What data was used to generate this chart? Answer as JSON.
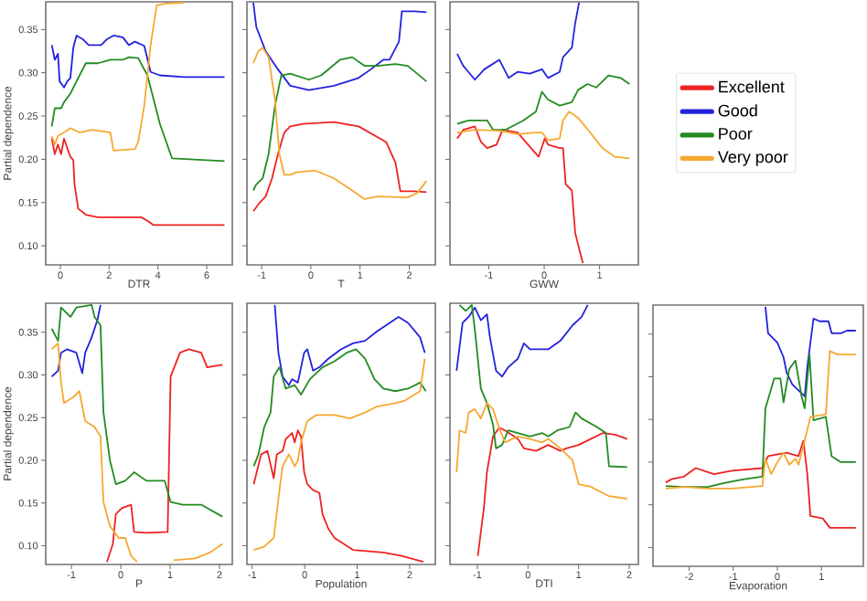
{
  "chart_data": [
    {
      "type": "line",
      "xlabel": "DTR",
      "ylabel": "Partial dependence",
      "xlim": [
        -0.6,
        7.05
      ],
      "xticks": [
        0,
        2,
        4,
        6
      ],
      "ylim": [
        0.078,
        0.382
      ],
      "yticks": [
        {
          "value": 0.1,
          "label": "0.10"
        },
        {
          "value": 0.15,
          "label": "0.15"
        },
        {
          "value": 0.2,
          "label": "0.20"
        },
        {
          "value": 0.25,
          "label": "0.25"
        },
        {
          "value": 0.3,
          "label": "0.30"
        },
        {
          "value": 0.35,
          "label": "0.35"
        }
      ],
      "series": [
        {
          "color": "#ee2222",
          "x": [
            -0.35,
            -0.23,
            -0.1,
            0.03,
            0.15,
            0.28,
            0.41,
            0.53,
            0.58,
            0.73,
            1.04,
            1.54,
            3.32,
            3.57,
            3.82,
            6.73
          ],
          "values": [
            0.224,
            0.206,
            0.217,
            0.206,
            0.224,
            0.213,
            0.203,
            0.199,
            0.171,
            0.143,
            0.136,
            0.133,
            0.133,
            0.129,
            0.124,
            0.124
          ]
        },
        {
          "color": "#2222dd",
          "x": [
            -0.35,
            -0.23,
            -0.1,
            -0.03,
            0.15,
            0.28,
            0.41,
            0.53,
            0.66,
            0.91,
            1.16,
            1.67,
            1.92,
            2.18,
            2.56,
            2.81,
            3.06,
            3.44,
            3.7,
            4.08,
            5.09,
            6.73
          ],
          "values": [
            0.332,
            0.315,
            0.322,
            0.29,
            0.283,
            0.29,
            0.294,
            0.329,
            0.343,
            0.339,
            0.332,
            0.332,
            0.339,
            0.343,
            0.341,
            0.332,
            0.336,
            0.331,
            0.301,
            0.297,
            0.295,
            0.295
          ]
        },
        {
          "color": "#228b22",
          "x": [
            -0.35,
            -0.23,
            0.03,
            0.15,
            0.41,
            0.66,
            1.04,
            1.54,
            2.05,
            2.56,
            2.81,
            3.19,
            3.57,
            4.08,
            4.58,
            6.73
          ],
          "values": [
            0.238,
            0.259,
            0.259,
            0.266,
            0.276,
            0.29,
            0.311,
            0.311,
            0.315,
            0.315,
            0.318,
            0.317,
            0.297,
            0.241,
            0.201,
            0.198
          ]
        },
        {
          "color": "#f5a830",
          "x": [
            -0.35,
            -0.23,
            -0.1,
            0.15,
            0.41,
            0.79,
            1.29,
            2.05,
            2.18,
            3.06,
            3.19,
            3.44,
            3.7,
            3.95,
            4.33,
            5.09
          ],
          "values": [
            0.227,
            0.217,
            0.227,
            0.231,
            0.236,
            0.231,
            0.234,
            0.231,
            0.21,
            0.212,
            0.22,
            0.262,
            0.332,
            0.378,
            0.38,
            0.381
          ]
        }
      ]
    },
    {
      "type": "line",
      "xlabel": "T",
      "xlim": [
        -1.3,
        2.53
      ],
      "xticks": [
        -1,
        0,
        1,
        2
      ],
      "ylim": [
        0.078,
        0.382
      ],
      "yticks": [
        0.1,
        0.15,
        0.2,
        0.25,
        0.3,
        0.35
      ],
      "tick_labels": "x",
      "series": [
        {
          "color": "#ee2222",
          "x": [
            -1.17,
            -1.04,
            -0.92,
            -0.79,
            -0.67,
            -0.54,
            -0.42,
            -0.16,
            0.47,
            0.97,
            1.53,
            1.72,
            1.82,
            2.1,
            2.35
          ],
          "values": [
            0.14,
            0.15,
            0.157,
            0.178,
            0.206,
            0.231,
            0.238,
            0.241,
            0.243,
            0.238,
            0.22,
            0.196,
            0.163,
            0.163,
            0.162
          ]
        },
        {
          "color": "#2222dd",
          "x": [
            -1.17,
            -1.11,
            -0.92,
            -0.67,
            -0.42,
            -0.04,
            0.47,
            0.97,
            1.22,
            1.47,
            1.6,
            1.79,
            1.85,
            2.1,
            2.35
          ],
          "values": [
            0.381,
            0.353,
            0.325,
            0.304,
            0.285,
            0.28,
            0.285,
            0.294,
            0.304,
            0.315,
            0.315,
            0.336,
            0.371,
            0.371,
            0.37
          ]
        },
        {
          "color": "#228b22",
          "x": [
            -1.17,
            -1.11,
            -0.98,
            -0.86,
            -0.73,
            -0.6,
            -0.42,
            -0.04,
            0.21,
            0.59,
            0.84,
            1.09,
            1.35,
            1.72,
            1.97,
            2.35
          ],
          "values": [
            0.164,
            0.171,
            0.178,
            0.206,
            0.262,
            0.297,
            0.299,
            0.292,
            0.297,
            0.315,
            0.318,
            0.308,
            0.308,
            0.31,
            0.308,
            0.29
          ]
        },
        {
          "color": "#f5a830",
          "x": [
            -1.17,
            -1.07,
            -0.98,
            -0.86,
            -0.73,
            -0.64,
            -0.54,
            -0.42,
            -0.29,
            0.09,
            0.47,
            0.84,
            1.09,
            1.35,
            1.97,
            2.16,
            2.35
          ],
          "values": [
            0.311,
            0.325,
            0.329,
            0.318,
            0.269,
            0.206,
            0.182,
            0.182,
            0.185,
            0.187,
            0.178,
            0.164,
            0.154,
            0.157,
            0.156,
            0.161,
            0.175
          ]
        }
      ]
    },
    {
      "type": "line",
      "xlabel": "GWW",
      "xlim": [
        -1.7,
        1.7
      ],
      "xticks": [
        -1,
        0,
        1
      ],
      "ylim": [
        0.078,
        0.382
      ],
      "yticks": [
        0.1,
        0.15,
        0.2,
        0.25,
        0.3,
        0.35
      ],
      "tick_labels": "x",
      "legend": "right",
      "series": [
        {
          "name": "Excellent",
          "color": "#ee2222",
          "x": [
            -1.57,
            -1.46,
            -1.25,
            -1.14,
            -1.03,
            -0.86,
            -0.75,
            -0.48,
            -0.1,
            0.01,
            0.07,
            0.28,
            0.34,
            0.39,
            0.5,
            0.56,
            0.67,
            0.7
          ],
          "values": [
            0.224,
            0.234,
            0.238,
            0.22,
            0.213,
            0.217,
            0.234,
            0.231,
            0.203,
            0.224,
            0.217,
            0.213,
            0.213,
            0.171,
            0.164,
            0.115,
            0.087,
            0.08
          ]
        },
        {
          "name": "Good",
          "color": "#2222dd",
          "x": [
            -1.57,
            -1.46,
            -1.25,
            -1.08,
            -0.81,
            -0.64,
            -0.48,
            -0.26,
            -0.04,
            0.07,
            0.28,
            0.34,
            0.5,
            0.56,
            0.63
          ],
          "values": [
            0.322,
            0.308,
            0.292,
            0.304,
            0.315,
            0.294,
            0.301,
            0.299,
            0.304,
            0.294,
            0.301,
            0.318,
            0.329,
            0.357,
            0.381
          ]
        },
        {
          "name": "Poor",
          "color": "#228b22",
          "x": [
            -1.57,
            -1.36,
            -1.03,
            -0.92,
            -0.7,
            -0.37,
            -0.15,
            -0.04,
            0.07,
            0.28,
            0.5,
            0.61,
            0.78,
            0.94,
            1.16,
            1.38,
            1.54
          ],
          "values": [
            0.241,
            0.245,
            0.245,
            0.234,
            0.234,
            0.245,
            0.255,
            0.278,
            0.269,
            0.262,
            0.266,
            0.28,
            0.287,
            0.283,
            0.297,
            0.294,
            0.287
          ]
        },
        {
          "name": "Very poor",
          "color": "#f5a830",
          "x": [
            -1.57,
            -1.25,
            -0.81,
            -0.48,
            -0.15,
            -0.04,
            0.07,
            0.28,
            0.34,
            0.45,
            0.61,
            0.83,
            1.05,
            1.27,
            1.54
          ],
          "values": [
            0.231,
            0.234,
            0.233,
            0.229,
            0.231,
            0.231,
            0.222,
            0.224,
            0.245,
            0.255,
            0.248,
            0.231,
            0.213,
            0.203,
            0.201
          ]
        }
      ]
    },
    {
      "type": "line",
      "xlabel": "P",
      "ylabel": "Partial dependence",
      "xlim": [
        -1.52,
        2.26
      ],
      "xticks": [
        -1,
        0,
        1,
        2
      ],
      "ylim": [
        0.078,
        0.384
      ],
      "yticks": [
        {
          "value": 0.1,
          "label": "0.10"
        },
        {
          "value": 0.15,
          "label": "0.15"
        },
        {
          "value": 0.2,
          "label": "0.20"
        },
        {
          "value": 0.25,
          "label": "0.25"
        },
        {
          "value": 0.3,
          "label": "0.30"
        },
        {
          "value": 0.35,
          "label": "0.35"
        }
      ],
      "series": [
        {
          "color": "#ee2222",
          "x": [
            -0.28,
            -0.16,
            -0.1,
            0.02,
            0.21,
            0.27,
            0.52,
            0.95,
            1.01,
            1.2,
            1.38,
            1.63,
            1.75,
            2.06
          ],
          "values": [
            0.081,
            0.102,
            0.137,
            0.144,
            0.148,
            0.116,
            0.115,
            0.116,
            0.298,
            0.326,
            0.33,
            0.326,
            0.309,
            0.312
          ]
        },
        {
          "color": "#2222dd",
          "x": [
            -1.4,
            -1.27,
            -1.21,
            -1.09,
            -0.9,
            -0.78,
            -0.72,
            -0.59,
            -0.47,
            -0.41
          ],
          "values": [
            0.298,
            0.305,
            0.326,
            0.33,
            0.326,
            0.302,
            0.326,
            0.344,
            0.365,
            0.382
          ]
        },
        {
          "color": "#228b22",
          "x": [
            -1.4,
            -1.27,
            -1.21,
            -1.02,
            -0.9,
            -0.59,
            -0.53,
            -0.41,
            -0.35,
            -0.22,
            -0.1,
            0.09,
            0.27,
            0.52,
            0.89,
            1.01,
            1.26,
            1.63,
            2.06
          ],
          "values": [
            0.354,
            0.34,
            0.379,
            0.368,
            0.379,
            0.382,
            0.368,
            0.358,
            0.256,
            0.2,
            0.172,
            0.176,
            0.186,
            0.176,
            0.176,
            0.151,
            0.148,
            0.148,
            0.134
          ]
        },
        {
          "color": "#f5a830",
          "x": [
            -1.4,
            -1.27,
            -1.21,
            -1.15,
            -0.96,
            -0.84,
            -0.72,
            -0.53,
            -0.41,
            -0.35,
            -0.22,
            -0.04,
            0.09,
            0.21,
            0.33,
            0.7,
            1.07,
            1.51,
            1.81,
            2.06
          ],
          "values": [
            0.33,
            0.337,
            0.291,
            0.267,
            0.274,
            0.281,
            0.246,
            0.239,
            0.228,
            0.151,
            0.123,
            0.109,
            0.109,
            0.088,
            0.081,
            null,
            0.083,
            0.085,
            0.092,
            0.102
          ]
        }
      ]
    },
    {
      "type": "line",
      "xlabel": "Population",
      "xlim": [
        -1.1,
        2.49
      ],
      "xticks": [
        -1,
        0,
        1,
        2
      ],
      "ylim": [
        0.078,
        0.384
      ],
      "yticks": [
        0.1,
        0.15,
        0.2,
        0.25,
        0.3,
        0.35
      ],
      "tick_labels": "x",
      "series": [
        {
          "color": "#ee2222",
          "x": [
            -0.97,
            -0.83,
            -0.71,
            -0.59,
            -0.53,
            -0.42,
            -0.36,
            -0.24,
            -0.19,
            -0.13,
            -0.07,
            -0.01,
            0.05,
            0.16,
            0.28,
            0.34,
            0.45,
            0.57,
            0.92,
            1.5,
            1.85,
            2.26
          ],
          "values": [
            0.172,
            0.207,
            0.211,
            0.179,
            0.207,
            0.211,
            0.225,
            0.232,
            0.221,
            0.235,
            0.228,
            0.186,
            0.172,
            0.165,
            0.162,
            0.137,
            0.12,
            0.109,
            0.095,
            0.092,
            0.088,
            0.081
          ]
        },
        {
          "color": "#2222dd",
          "x": [
            -0.57,
            -0.5,
            -0.42,
            -0.3,
            -0.24,
            -0.13,
            -0.01,
            0.05,
            0.16,
            0.28,
            0.45,
            0.69,
            0.92,
            1.15,
            1.38,
            1.62,
            1.79,
            1.97,
            2.2,
            2.29
          ],
          "values": [
            0.382,
            0.326,
            0.298,
            0.288,
            0.295,
            0.291,
            0.326,
            0.33,
            0.305,
            0.309,
            0.319,
            0.33,
            0.337,
            0.34,
            0.351,
            0.361,
            0.368,
            0.361,
            0.344,
            0.326
          ]
        },
        {
          "color": "#228b22",
          "x": [
            -0.97,
            -0.88,
            -0.77,
            -0.65,
            -0.59,
            -0.48,
            -0.36,
            -0.19,
            -0.07,
            0.1,
            0.34,
            0.57,
            0.8,
            0.98,
            1.15,
            1.33,
            1.5,
            1.73,
            1.97,
            2.2,
            2.31
          ],
          "values": [
            0.193,
            0.207,
            0.239,
            0.256,
            0.298,
            0.309,
            0.284,
            0.288,
            0.277,
            0.295,
            0.309,
            0.316,
            0.326,
            0.33,
            0.319,
            0.295,
            0.284,
            0.281,
            0.284,
            0.291,
            0.281
          ]
        },
        {
          "color": "#f5a830",
          "x": [
            -0.97,
            -0.77,
            -0.59,
            -0.48,
            -0.42,
            -0.3,
            -0.19,
            -0.13,
            -0.07,
            0.05,
            0.22,
            0.57,
            0.86,
            1.15,
            1.38,
            1.73,
            1.91,
            2.2,
            2.29
          ],
          "values": [
            0.095,
            0.099,
            0.109,
            0.165,
            0.193,
            0.207,
            0.193,
            0.2,
            0.221,
            0.246,
            0.253,
            0.253,
            0.249,
            0.256,
            0.263,
            0.267,
            0.27,
            0.281,
            0.319
          ]
        }
      ]
    },
    {
      "type": "line",
      "xlabel": "DTI",
      "xlim": [
        -1.54,
        2.18
      ],
      "xticks": [
        -1,
        0,
        1,
        2
      ],
      "ylim": [
        0.078,
        0.384
      ],
      "yticks": [
        0.1,
        0.15,
        0.2,
        0.25,
        0.3,
        0.35
      ],
      "tick_labels": "x",
      "series": [
        {
          "color": "#ee2222",
          "x": [
            -0.99,
            -0.93,
            -0.87,
            -0.81,
            -0.69,
            -0.57,
            -0.45,
            -0.2,
            -0.08,
            0.16,
            0.4,
            0.64,
            0.76,
            1.0,
            1.24,
            1.48,
            1.72,
            1.96
          ],
          "values": [
            0.088,
            0.116,
            0.144,
            0.186,
            0.228,
            0.238,
            0.235,
            0.225,
            0.214,
            0.211,
            0.218,
            0.211,
            0.214,
            0.218,
            0.225,
            0.232,
            0.23,
            0.225
          ]
        },
        {
          "color": "#2222dd",
          "x": [
            -1.41,
            -1.29,
            -1.17,
            -1.05,
            -0.93,
            -0.81,
            -0.75,
            -0.63,
            -0.51,
            -0.39,
            -0.2,
            -0.08,
            0.04,
            0.28,
            0.4,
            0.64,
            0.88,
            1.06,
            1.18
          ],
          "values": [
            0.305,
            0.361,
            0.368,
            0.379,
            0.364,
            0.371,
            0.344,
            0.305,
            0.298,
            0.309,
            0.319,
            0.337,
            0.33,
            0.33,
            0.33,
            0.34,
            0.358,
            0.368,
            0.382
          ]
        },
        {
          "color": "#228b22",
          "x": [
            -1.35,
            -1.23,
            -1.11,
            -1.05,
            -0.93,
            -0.81,
            -0.69,
            -0.63,
            -0.51,
            -0.39,
            -0.2,
            0.04,
            0.28,
            0.4,
            0.58,
            0.82,
            0.94,
            1.06,
            1.36,
            1.54,
            1.6,
            1.96
          ],
          "values": [
            0.382,
            0.375,
            0.382,
            0.354,
            0.284,
            0.267,
            0.242,
            0.214,
            0.218,
            0.235,
            0.232,
            0.228,
            0.232,
            0.228,
            0.235,
            0.239,
            0.256,
            0.249,
            0.239,
            0.232,
            0.193,
            0.192
          ]
        },
        {
          "color": "#f5a830",
          "x": [
            -1.41,
            -1.35,
            -1.23,
            -1.17,
            -1.05,
            -0.93,
            -0.81,
            -0.69,
            -0.57,
            -0.45,
            -0.2,
            0.04,
            0.28,
            0.4,
            0.64,
            0.88,
            1.0,
            1.24,
            1.6,
            1.96
          ],
          "values": [
            0.186,
            0.235,
            0.232,
            0.256,
            0.26,
            0.249,
            0.267,
            0.26,
            0.238,
            0.221,
            0.228,
            0.225,
            0.221,
            0.225,
            0.214,
            0.2,
            0.172,
            0.169,
            0.158,
            0.155
          ]
        }
      ]
    },
    {
      "type": "line",
      "xlabel": "Evaporation",
      "xlim": [
        -2.82,
        1.95
      ],
      "xticks": [
        -2,
        -1,
        0,
        1
      ],
      "ylim": [
        0.078,
        0.384
      ],
      "yticks": [
        0.1,
        0.15,
        0.2,
        0.25,
        0.3,
        0.35
      ],
      "tick_labels": "x",
      "series": [
        {
          "color": "#ee2222",
          "x": [
            -2.53,
            -2.4,
            -2.12,
            -1.85,
            -1.44,
            -1.03,
            -0.34,
            -0.21,
            0.21,
            0.48,
            0.59,
            0.68,
            0.75,
            1.03,
            1.19,
            1.78
          ],
          "values": [
            0.176,
            0.18,
            0.183,
            0.193,
            0.186,
            0.19,
            0.193,
            0.207,
            0.211,
            0.207,
            0.225,
            0.186,
            0.137,
            0.134,
            0.123,
            0.123
          ]
        },
        {
          "color": "#2222dd",
          "x": [
            -0.27,
            -0.21,
            0,
            0.14,
            0.21,
            0.34,
            0.48,
            0.62,
            0.68,
            0.82,
            0.96,
            1.16,
            1.23,
            1.44,
            1.58,
            1.78
          ],
          "values": [
            0.382,
            0.351,
            0.34,
            0.323,
            0.305,
            0.291,
            0.284,
            0.277,
            0.312,
            0.368,
            0.365,
            0.365,
            0.351,
            0.351,
            0.354,
            0.354
          ]
        },
        {
          "color": "#228b22",
          "x": [
            -2.53,
            -2.12,
            -1.58,
            -1.16,
            -0.75,
            -0.34,
            -0.27,
            -0.07,
            0.07,
            0.14,
            0.27,
            0.41,
            0.55,
            0.62,
            0.73,
            0.82,
            1.1,
            1.23,
            1.44,
            1.78
          ],
          "values": [
            0.172,
            0.171,
            0.171,
            0.176,
            0.18,
            0.183,
            0.263,
            0.298,
            0.298,
            0.27,
            0.309,
            0.319,
            0.277,
            0.263,
            0.326,
            0.249,
            0.253,
            0.207,
            0.2,
            0.2
          ]
        },
        {
          "color": "#f5a830",
          "x": [
            -2.53,
            -2.12,
            -1.58,
            -1.03,
            -0.34,
            -0.27,
            -0.14,
            0,
            0.14,
            0.27,
            0.41,
            0.48,
            0.62,
            0.75,
            1.1,
            1.19,
            1.37,
            1.78
          ],
          "values": [
            0.169,
            0.171,
            0.169,
            0.169,
            0.172,
            0.204,
            0.186,
            0.2,
            0.211,
            0.197,
            0.204,
            0.197,
            0.225,
            0.253,
            0.256,
            0.33,
            0.326,
            0.326
          ]
        }
      ]
    }
  ]
}
